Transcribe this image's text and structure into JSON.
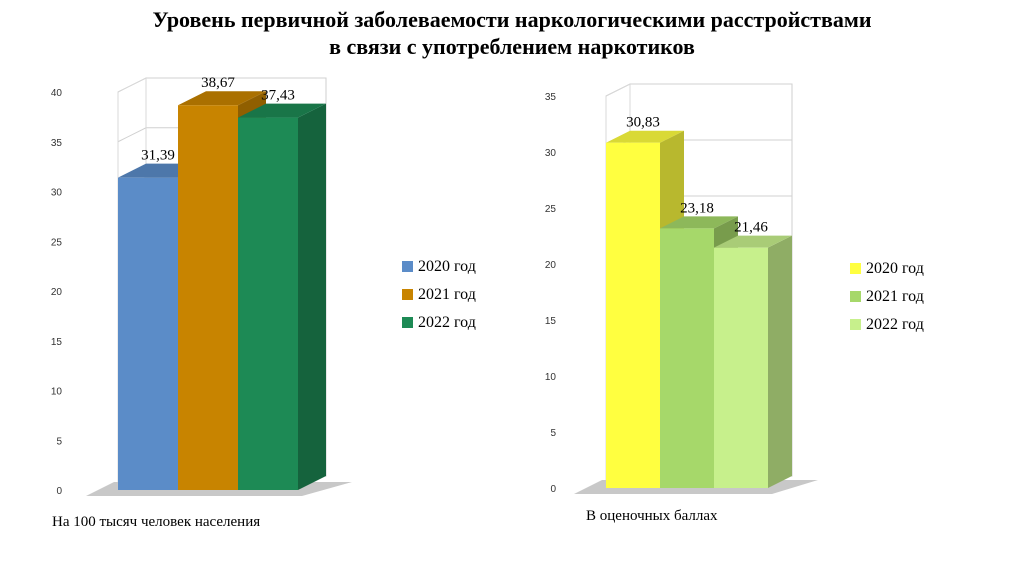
{
  "title_line1": "Уровень первичной заболеваемости наркологическими расстройствами",
  "title_line2": "в связи с употреблением наркотиков",
  "chart_data": [
    {
      "type": "bar",
      "title": "",
      "xlabel": "На 100 тысяч человек населения",
      "ylabel": "",
      "ylim": [
        0,
        40
      ],
      "yticks": [
        0,
        5,
        10,
        15,
        20,
        25,
        30,
        35,
        40
      ],
      "legend_position": "right",
      "grid": true,
      "series": [
        {
          "name": "2020 год",
          "values": [
            31.39
          ],
          "label": "31,39",
          "color": "#5b8cc8"
        },
        {
          "name": "2021 год",
          "values": [
            38.67
          ],
          "label": "38,67",
          "color": "#c88400"
        },
        {
          "name": "2022 год",
          "values": [
            37.43
          ],
          "label": "37,43",
          "color": "#1d8a55"
        }
      ]
    },
    {
      "type": "bar",
      "title": "",
      "xlabel": "В оценочных баллах",
      "ylabel": "",
      "ylim": [
        0,
        35
      ],
      "yticks": [
        0,
        5,
        10,
        15,
        20,
        25,
        30,
        35
      ],
      "legend_position": "right",
      "grid": true,
      "series": [
        {
          "name": "2020 год",
          "values": [
            30.83
          ],
          "label": "30,83",
          "color": "#ffff40"
        },
        {
          "name": "2021 год",
          "values": [
            23.18
          ],
          "label": "23,18",
          "color": "#a6d86a"
        },
        {
          "name": "2022 год",
          "values": [
            21.46
          ],
          "label": "21,46",
          "color": "#c7f08c"
        }
      ]
    }
  ]
}
